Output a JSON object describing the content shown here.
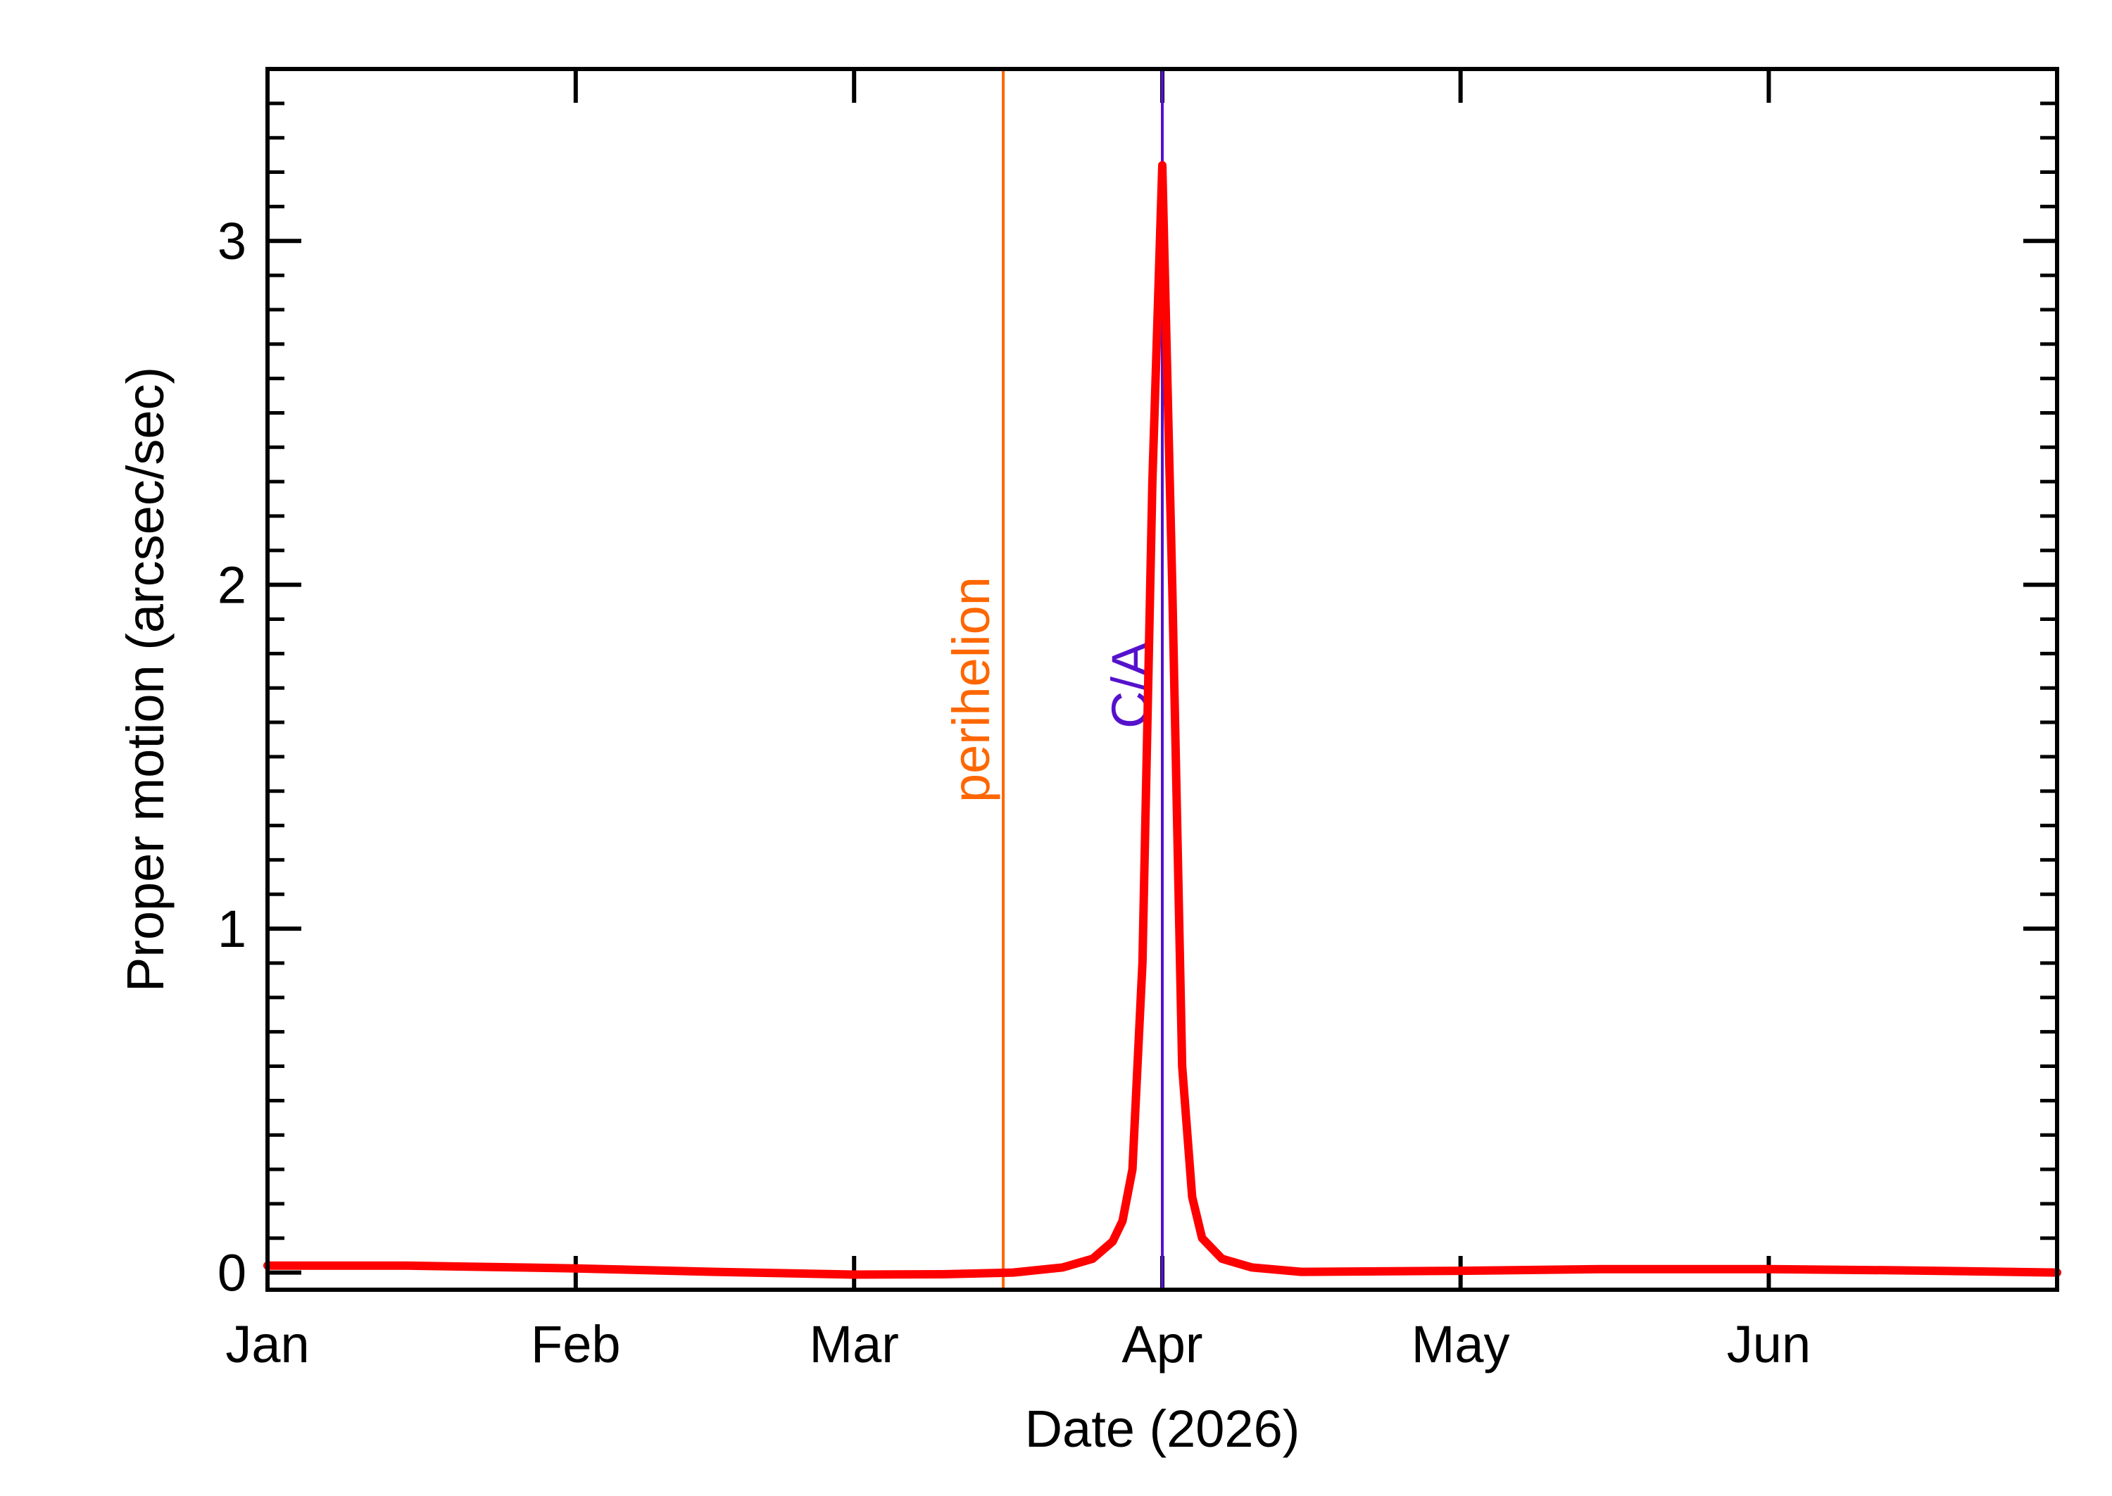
{
  "chart_data": {
    "type": "line",
    "title": "",
    "xlabel": "Date (2026)",
    "ylabel": "Proper motion (arcsec/sec)",
    "xlim": [
      "2026-01-01",
      "2026-06-30"
    ],
    "ylim": [
      -0.05,
      3.5
    ],
    "x_ticks": [
      {
        "label": "Jan",
        "date": "2026-01-01"
      },
      {
        "label": "Feb",
        "date": "2026-02-01"
      },
      {
        "label": "Mar",
        "date": "2026-03-01"
      },
      {
        "label": "Apr",
        "date": "2026-04-01"
      },
      {
        "label": "May",
        "date": "2026-05-01"
      },
      {
        "label": "Jun",
        "date": "2026-06-01"
      }
    ],
    "y_ticks": [
      {
        "label": "0",
        "value": 0
      },
      {
        "label": "1",
        "value": 1
      },
      {
        "label": "2",
        "value": 2
      },
      {
        "label": "3",
        "value": 3
      }
    ],
    "series": [
      {
        "color": "#ff0000",
        "points": [
          [
            "2026-01-01",
            0.02
          ],
          [
            "2026-01-15",
            0.02
          ],
          [
            "2026-02-01",
            0.012
          ],
          [
            "2026-02-15",
            0.002
          ],
          [
            "2026-03-01",
            -0.006
          ],
          [
            "2026-03-10",
            -0.005
          ],
          [
            "2026-03-17",
            0.0
          ],
          [
            "2026-03-22",
            0.015
          ],
          [
            "2026-03-25",
            0.04
          ],
          [
            "2026-03-27",
            0.09
          ],
          [
            "2026-03-28",
            0.15
          ],
          [
            "2026-03-29",
            0.3
          ],
          [
            "2026-03-30",
            0.9
          ],
          [
            "2026-03-31",
            2.3
          ],
          [
            "2026-04-01",
            3.22
          ],
          [
            "2026-04-02",
            2.0
          ],
          [
            "2026-04-03",
            0.6
          ],
          [
            "2026-04-04",
            0.22
          ],
          [
            "2026-04-05",
            0.1
          ],
          [
            "2026-04-07",
            0.04
          ],
          [
            "2026-04-10",
            0.015
          ],
          [
            "2026-04-15",
            0.002
          ],
          [
            "2026-05-01",
            0.005
          ],
          [
            "2026-05-15",
            0.01
          ],
          [
            "2026-06-01",
            0.01
          ],
          [
            "2026-06-15",
            0.006
          ],
          [
            "2026-06-30",
            0.0
          ]
        ]
      }
    ],
    "markers": [
      {
        "label": "perihelion",
        "date": "2026-03-16",
        "color": "#ff6600"
      },
      {
        "label": "C/A",
        "date": "2026-04-01",
        "color": "#5511cc"
      }
    ],
    "grid": false,
    "legend": "none"
  }
}
